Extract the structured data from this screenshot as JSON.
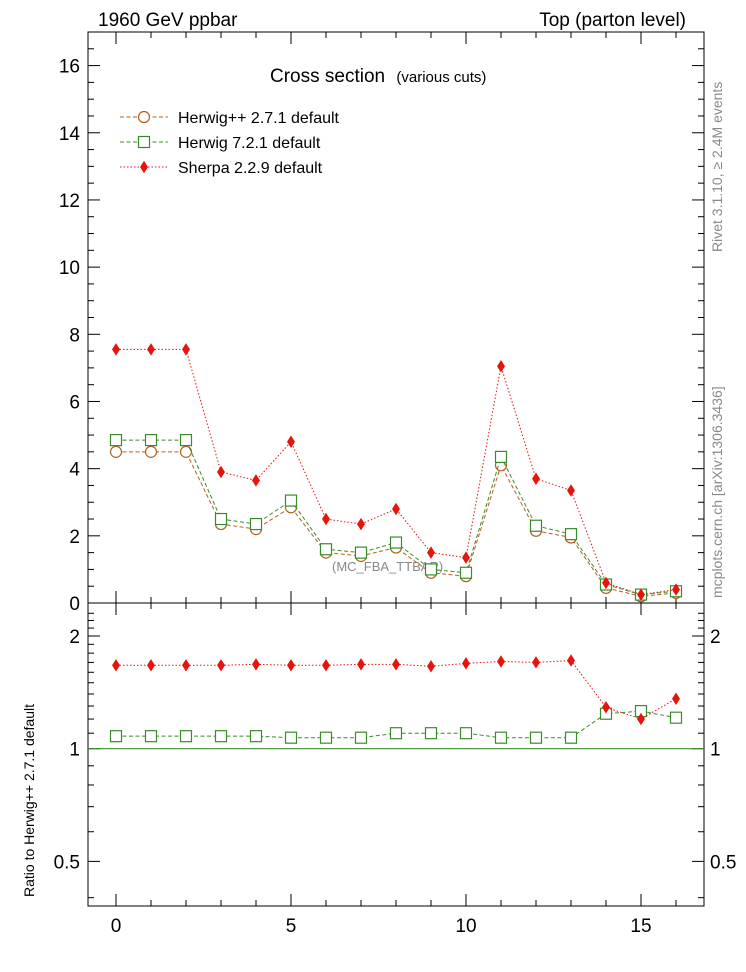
{
  "header": {
    "left": "1960 GeV ppbar",
    "right": "Top (parton level)"
  },
  "side_labels": {
    "rivet": "Rivet 3.1.10, ≥ 2.4M events",
    "mcplots": "mcplots.cern.ch [arXiv:1306.3436]"
  },
  "watermark": "(MC_FBA_TTBAR)",
  "chart_data": [
    {
      "panel": "main",
      "type": "line",
      "title": "Cross section",
      "subtitle": "(various cuts)",
      "xlabel": "",
      "ylabel": "",
      "xlim": [
        -0.8,
        16.8
      ],
      "ylim": [
        0,
        17
      ],
      "yticks": [
        0,
        2,
        4,
        6,
        8,
        10,
        12,
        14,
        16
      ],
      "ytick_labels": [
        "0",
        "2",
        "4",
        "6",
        "8",
        "10",
        "12",
        "14",
        "16"
      ],
      "legend_position": "top-left",
      "x": [
        0,
        1,
        2,
        3,
        4,
        5,
        6,
        7,
        8,
        9,
        10,
        11,
        12,
        13,
        14,
        15,
        16
      ],
      "series": [
        {
          "name": "Herwig++ 2.7.1 default",
          "color": "#b35f1e",
          "marker": "open-circle",
          "line": "dashed",
          "values": [
            4.5,
            4.5,
            4.5,
            2.35,
            2.2,
            2.85,
            1.5,
            1.4,
            1.65,
            0.9,
            0.8,
            4.1,
            2.15,
            1.95,
            0.45,
            0.2,
            0.3
          ]
        },
        {
          "name": "Herwig 7.2.1 default",
          "color": "#3a8c28",
          "marker": "open-square",
          "line": "dashed",
          "values": [
            4.85,
            4.85,
            4.85,
            2.5,
            2.35,
            3.05,
            1.6,
            1.5,
            1.8,
            1.0,
            0.9,
            4.35,
            2.3,
            2.05,
            0.55,
            0.25,
            0.35
          ]
        },
        {
          "name": "Sherpa 2.2.9 default",
          "color": "#e8130c",
          "marker": "filled-diamond",
          "line": "dotted",
          "values": [
            7.55,
            7.55,
            7.55,
            3.9,
            3.65,
            4.8,
            2.5,
            2.35,
            2.8,
            1.5,
            1.35,
            7.05,
            3.7,
            3.35,
            0.6,
            0.25,
            0.4
          ]
        }
      ]
    },
    {
      "panel": "ratio",
      "type": "line",
      "title": "",
      "xlabel": "",
      "ylabel": "Ratio to Herwig++ 2.7.1 default",
      "yscale": "log",
      "xlim": [
        -0.8,
        16.8
      ],
      "ylim": [
        0.38,
        2.45
      ],
      "yticks": [
        0.5,
        1,
        2
      ],
      "ytick_labels": [
        "0.5",
        "1",
        "2"
      ],
      "xticks": [
        0,
        5,
        10,
        15
      ],
      "xtick_labels": [
        "0",
        "5",
        "10",
        "15"
      ],
      "reference_line": 1,
      "x": [
        0,
        1,
        2,
        3,
        4,
        5,
        6,
        7,
        8,
        9,
        10,
        11,
        12,
        13,
        14,
        15,
        16
      ],
      "series": [
        {
          "name": "Herwig 7.2.1 default",
          "color": "#3a8c28",
          "marker": "open-square",
          "line": "dashed",
          "values": [
            1.08,
            1.08,
            1.08,
            1.08,
            1.08,
            1.07,
            1.07,
            1.07,
            1.1,
            1.1,
            1.1,
            1.07,
            1.07,
            1.07,
            1.24,
            1.26,
            1.21
          ]
        },
        {
          "name": "Sherpa 2.2.9 default",
          "color": "#e8130c",
          "marker": "filled-diamond",
          "line": "dotted",
          "values": [
            1.67,
            1.67,
            1.67,
            1.67,
            1.68,
            1.67,
            1.67,
            1.68,
            1.68,
            1.66,
            1.69,
            1.71,
            1.7,
            1.72,
            1.29,
            1.2,
            1.36
          ]
        }
      ]
    }
  ]
}
